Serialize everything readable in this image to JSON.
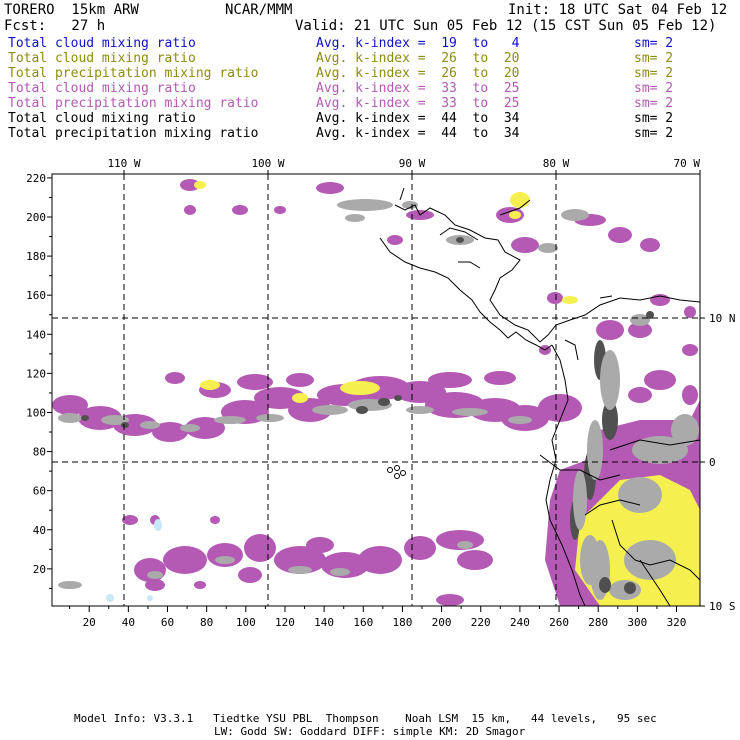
{
  "header": {
    "model": "TORERO  15km ARW",
    "org": "NCAR/MMM",
    "init": "Init: 18 UTC Sat 04 Feb 12",
    "fcst": "Fcst:   27 h",
    "valid": "Valid: 21 UTC Sun 05 Feb 12 (15 CST Sun 05 Feb 12)"
  },
  "legend": [
    {
      "field": "Total cloud mixing ratio",
      "index": "Avg. k-index =  19  to   4",
      "sm": "sm= 2",
      "color": "#1010c8"
    },
    {
      "field": "Total cloud mixing ratio",
      "index": "Avg. k-index =  26  to  20",
      "sm": "sm= 2",
      "color": "#8c8c10"
    },
    {
      "field": "Total precipitation mixing ratio",
      "index": "Avg. k-index =  26  to  20",
      "sm": "sm= 2",
      "color": "#8c8c10"
    },
    {
      "field": "Total cloud mixing ratio",
      "index": "Avg. k-index =  33  to  25",
      "sm": "sm= 2",
      "color": "#b45ab4"
    },
    {
      "field": "Total precipitation mixing ratio",
      "index": "Avg. k-index =  33  to  25",
      "sm": "sm= 2",
      "color": "#b45ab4"
    },
    {
      "field": "Total cloud mixing ratio",
      "index": "Avg. k-index =  44  to  34",
      "sm": "sm= 2",
      "color": "#000000"
    },
    {
      "field": "Total precipitation mixing ratio",
      "index": "Avg. k-index =  44  to  34",
      "sm": "sm= 2",
      "color": "#000000"
    }
  ],
  "map": {
    "lon_labels": [
      "110 W",
      "100 W",
      "90 W",
      "80 W",
      "70 W"
    ],
    "lat_labels": [
      "10 N",
      "0",
      "10 S"
    ],
    "x_ticks": [
      "20",
      "40",
      "60",
      "80",
      "100",
      "120",
      "140",
      "160",
      "180",
      "200",
      "220",
      "240",
      "260",
      "280",
      "300",
      "320"
    ],
    "y_ticks": [
      "220",
      "200",
      "180",
      "160",
      "140",
      "120",
      "100",
      "80",
      "60",
      "40",
      "20"
    ],
    "colors": {
      "purple": "#b45ab4",
      "yellow": "#f5f050",
      "light_gray": "#aaaaaa",
      "dark_gray": "#505050",
      "light_blue": "#c8e8f8"
    }
  },
  "footer": {
    "line1": "Model Info: V3.3.1   Tiedtke YSU PBL  Thompson    Noah LSM  15 km,   44 levels,   95 sec",
    "line2": "LW: Godd SW: Goddard DIFF: simple KM: 2D Smagor"
  }
}
